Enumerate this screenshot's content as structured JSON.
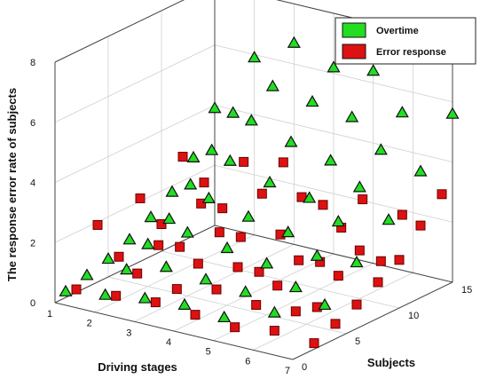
{
  "chart_data": {
    "type": "scatter3d",
    "title": "",
    "xlabel": "Driving stages",
    "ylabel": "Subjects",
    "zlabel": "The response error rate of subjects",
    "xlim": [
      1,
      7
    ],
    "ylim": [
      0,
      15
    ],
    "zlim": [
      0,
      8
    ],
    "xticks": [
      "1",
      "2",
      "3",
      "4",
      "5",
      "6",
      "7"
    ],
    "yticks": [
      "0",
      "5",
      "10",
      "15"
    ],
    "zticks": [
      "0",
      "2",
      "4",
      "6",
      "8"
    ],
    "grid": true,
    "legend_position": "top-right",
    "series": [
      {
        "name": "Overtime",
        "color": "#22dd22",
        "marker": "triangle",
        "points": [
          [
            1,
            1,
            0.2
          ],
          [
            1,
            3,
            0.4
          ],
          [
            1,
            5,
            0.6
          ],
          [
            1,
            7,
            0.9
          ],
          [
            1,
            9,
            1.3
          ],
          [
            1,
            11,
            1.8
          ],
          [
            1,
            13,
            2.6
          ],
          [
            1,
            15,
            3.9
          ],
          [
            2,
            1,
            0.4
          ],
          [
            2,
            3,
            0.9
          ],
          [
            2,
            5,
            1.4
          ],
          [
            2,
            7,
            1.9
          ],
          [
            2,
            9,
            2.7
          ],
          [
            2,
            11,
            3.5
          ],
          [
            2,
            13,
            4.4
          ],
          [
            2,
            15,
            5.9
          ],
          [
            3,
            1,
            0.6
          ],
          [
            3,
            3,
            1.3
          ],
          [
            3,
            5,
            2.1
          ],
          [
            3,
            7,
            2.9
          ],
          [
            3,
            9,
            3.8
          ],
          [
            3,
            11,
            4.8
          ],
          [
            3,
            13,
            5.6
          ],
          [
            3,
            15,
            6.7
          ],
          [
            4,
            1,
            0.7
          ],
          [
            4,
            3,
            1.2
          ],
          [
            4,
            5,
            1.9
          ],
          [
            4,
            7,
            2.6
          ],
          [
            4,
            9,
            3.4
          ],
          [
            4,
            11,
            4.4
          ],
          [
            4,
            13,
            5.4
          ],
          [
            4,
            15,
            6.2
          ],
          [
            5,
            1,
            0.6
          ],
          [
            5,
            3,
            1.1
          ],
          [
            5,
            5,
            1.7
          ],
          [
            5,
            7,
            2.4
          ],
          [
            5,
            9,
            3.2
          ],
          [
            5,
            11,
            4.1
          ],
          [
            5,
            13,
            5.2
          ],
          [
            5,
            15,
            6.4
          ],
          [
            6,
            2,
            0.9
          ],
          [
            6,
            4,
            1.4
          ],
          [
            6,
            6,
            2.1
          ],
          [
            6,
            8,
            2.9
          ],
          [
            6,
            10,
            3.7
          ],
          [
            6,
            12,
            4.6
          ],
          [
            6,
            14,
            5.5
          ],
          [
            7,
            3,
            1.3
          ],
          [
            7,
            6,
            2.2
          ],
          [
            7,
            9,
            3.1
          ],
          [
            7,
            12,
            4.2
          ],
          [
            7,
            15,
            5.6
          ]
        ]
      },
      {
        "name": "Error response",
        "color": "#dd1111",
        "marker": "square",
        "points": [
          [
            1,
            2,
            0.1
          ],
          [
            1,
            4,
            1.9
          ],
          [
            1,
            6,
            0.5
          ],
          [
            1,
            8,
            2.1
          ],
          [
            1,
            10,
            0.9
          ],
          [
            1,
            12,
            2.8
          ],
          [
            1,
            14,
            1.6
          ],
          [
            2,
            2,
            0.2
          ],
          [
            2,
            4,
            0.6
          ],
          [
            2,
            6,
            1.2
          ],
          [
            2,
            8,
            0.8
          ],
          [
            2,
            10,
            1.9
          ],
          [
            2,
            12,
            1.4
          ],
          [
            2,
            14,
            2.6
          ],
          [
            3,
            2,
            0.3
          ],
          [
            3,
            4,
            0.4
          ],
          [
            3,
            6,
            0.9
          ],
          [
            3,
            8,
            1.6
          ],
          [
            3,
            10,
            1.1
          ],
          [
            3,
            12,
            2.2
          ],
          [
            3,
            14,
            2.9
          ],
          [
            4,
            2,
            0.2
          ],
          [
            4,
            4,
            0.7
          ],
          [
            4,
            6,
            1.1
          ],
          [
            4,
            8,
            0.6
          ],
          [
            4,
            10,
            1.5
          ],
          [
            4,
            12,
            2.4
          ],
          [
            4,
            14,
            1.8
          ],
          [
            5,
            2,
            0.1
          ],
          [
            5,
            4,
            0.5
          ],
          [
            5,
            6,
            0.8
          ],
          [
            5,
            8,
            1.3
          ],
          [
            5,
            10,
            0.9
          ],
          [
            5,
            12,
            1.7
          ],
          [
            5,
            14,
            2.3
          ],
          [
            6,
            2,
            0.3
          ],
          [
            6,
            4,
            0.6
          ],
          [
            6,
            6,
            0.4
          ],
          [
            6,
            8,
            1.1
          ],
          [
            6,
            10,
            1.6
          ],
          [
            6,
            12,
            0.9
          ],
          [
            6,
            14,
            2.1
          ],
          [
            7,
            2,
            0.2
          ],
          [
            7,
            4,
            0.5
          ],
          [
            7,
            6,
            0.8
          ],
          [
            7,
            8,
            1.2
          ],
          [
            7,
            10,
            1.6
          ],
          [
            7,
            12,
            2.4
          ],
          [
            7,
            14,
            3.1
          ]
        ]
      }
    ]
  }
}
